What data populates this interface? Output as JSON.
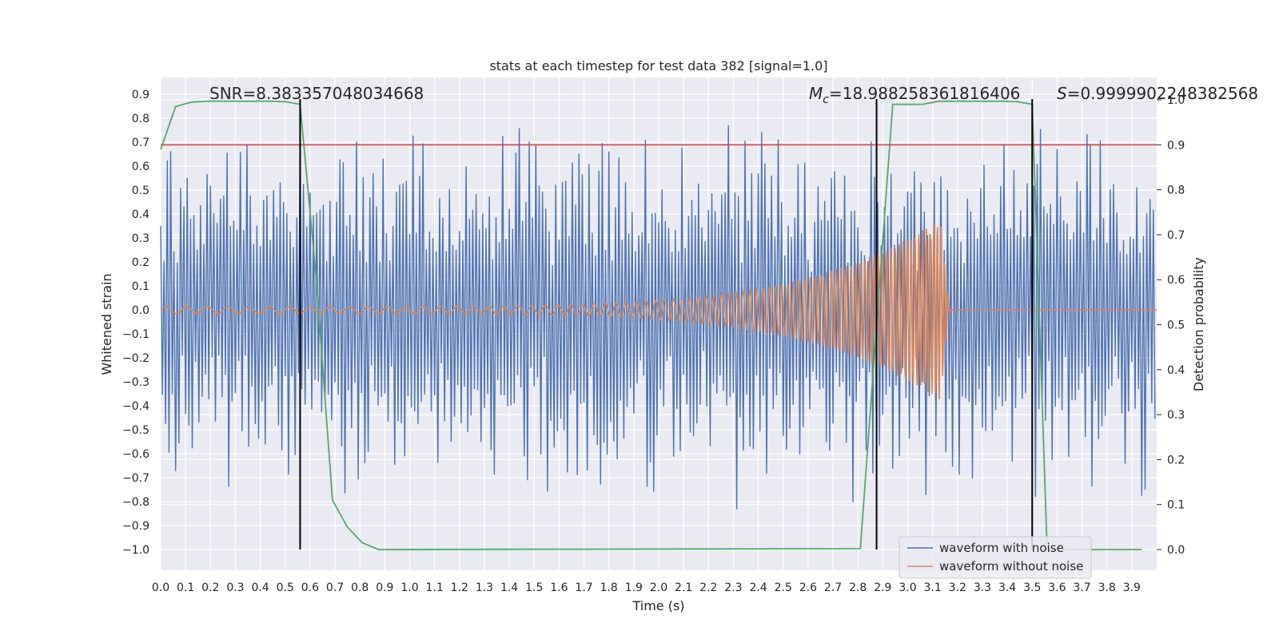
{
  "chart_data": {
    "type": "line",
    "title": "stats at each timestep for test data 382 [signal=1.0]",
    "xlabel": "Time (s)",
    "ylabel": "Whitened strain",
    "y2label": "Detection probability",
    "xlim": [
      0.0,
      4.0
    ],
    "ylim": [
      -1.1,
      0.95
    ],
    "y2lim": [
      -0.05,
      1.0
    ],
    "xticks": [
      "0.0",
      "0.1",
      "0.2",
      "0.3",
      "0.4",
      "0.5",
      "0.6",
      "0.7",
      "0.8",
      "0.9",
      "1.0",
      "1.1",
      "1.2",
      "1.3",
      "1.4",
      "1.5",
      "1.6",
      "1.7",
      "1.8",
      "1.9",
      "2.0",
      "2.1",
      "2.2",
      "2.3",
      "2.4",
      "2.5",
      "2.6",
      "2.7",
      "2.8",
      "2.9",
      "3.0",
      "3.1",
      "3.2",
      "3.3",
      "3.4",
      "3.5",
      "3.6",
      "3.7",
      "3.8",
      "3.9"
    ],
    "yticks": [
      "0.9",
      "0.8",
      "0.7",
      "0.6",
      "0.5",
      "0.4",
      "0.3",
      "0.2",
      "0.1",
      "0.0",
      "−0.1",
      "−0.2",
      "−0.3",
      "−0.4",
      "−0.5",
      "−0.6",
      "−0.7",
      "−0.8",
      "−0.9",
      "−1.0"
    ],
    "y2ticks": [
      "0.0",
      "0.1",
      "0.2",
      "0.3",
      "0.4",
      "0.5",
      "0.6",
      "0.7",
      "0.8",
      "0.9",
      "1.0"
    ],
    "grid": true,
    "legend_position": "bottom-right",
    "annotations": {
      "snr": "SNR=8.383357048034668",
      "mc_symbol": "M",
      "mc_subscript": "c",
      "mc_value": "=18.988258361816406",
      "s_symbol": "S",
      "s_value": "=0.9999902248382568"
    },
    "colors": {
      "noisy": "#4c72b0",
      "clean": "#dd8452",
      "probability": "#55a868",
      "threshold": "#c44e52",
      "markers": "#000000",
      "grid": "#ffffff",
      "background": "#eaeaf2"
    },
    "series": [
      {
        "name": "waveform with noise",
        "axis": "left",
        "description_values": {
          "sample_count": 600,
          "amplitude_range": [
            -1.0,
            0.83
          ]
        }
      },
      {
        "name": "waveform without noise",
        "axis": "left",
        "chirp": {
          "start_time": 0.0,
          "merger_time": 3.13,
          "start_amplitude": 0.015,
          "peak_amplitude": 0.38,
          "start_frequency_hz": 12,
          "end_frequency_hz": 70,
          "ringdown_end": 3.17
        }
      },
      {
        "name": "",
        "axis": "right",
        "x": [
          0.0,
          0.06,
          0.125,
          0.19,
          0.25,
          0.31,
          0.375,
          0.44,
          0.5,
          0.56,
          0.625,
          0.69,
          0.75,
          0.81,
          0.875,
          2.81,
          2.875,
          2.94,
          3.0,
          3.06,
          3.125,
          3.19,
          3.25,
          3.31,
          3.375,
          3.44,
          3.5,
          3.56,
          3.625,
          3.69,
          3.75,
          3.81,
          3.875,
          3.94
        ],
        "values": [
          0.89,
          0.985,
          0.995,
          0.997,
          0.997,
          0.997,
          0.997,
          0.997,
          0.996,
          0.99,
          0.6,
          0.11,
          0.05,
          0.015,
          0.0,
          0.002,
          0.5,
          0.99,
          0.99,
          0.99,
          0.997,
          0.997,
          0.997,
          0.997,
          0.997,
          0.996,
          0.99,
          0.0,
          0.0,
          0.0,
          0.0,
          0.0,
          0.0,
          0.0
        ]
      }
    ],
    "threshold_value": 0.9,
    "marker_lines_x": [
      0.56,
      2.875,
      3.5
    ]
  }
}
